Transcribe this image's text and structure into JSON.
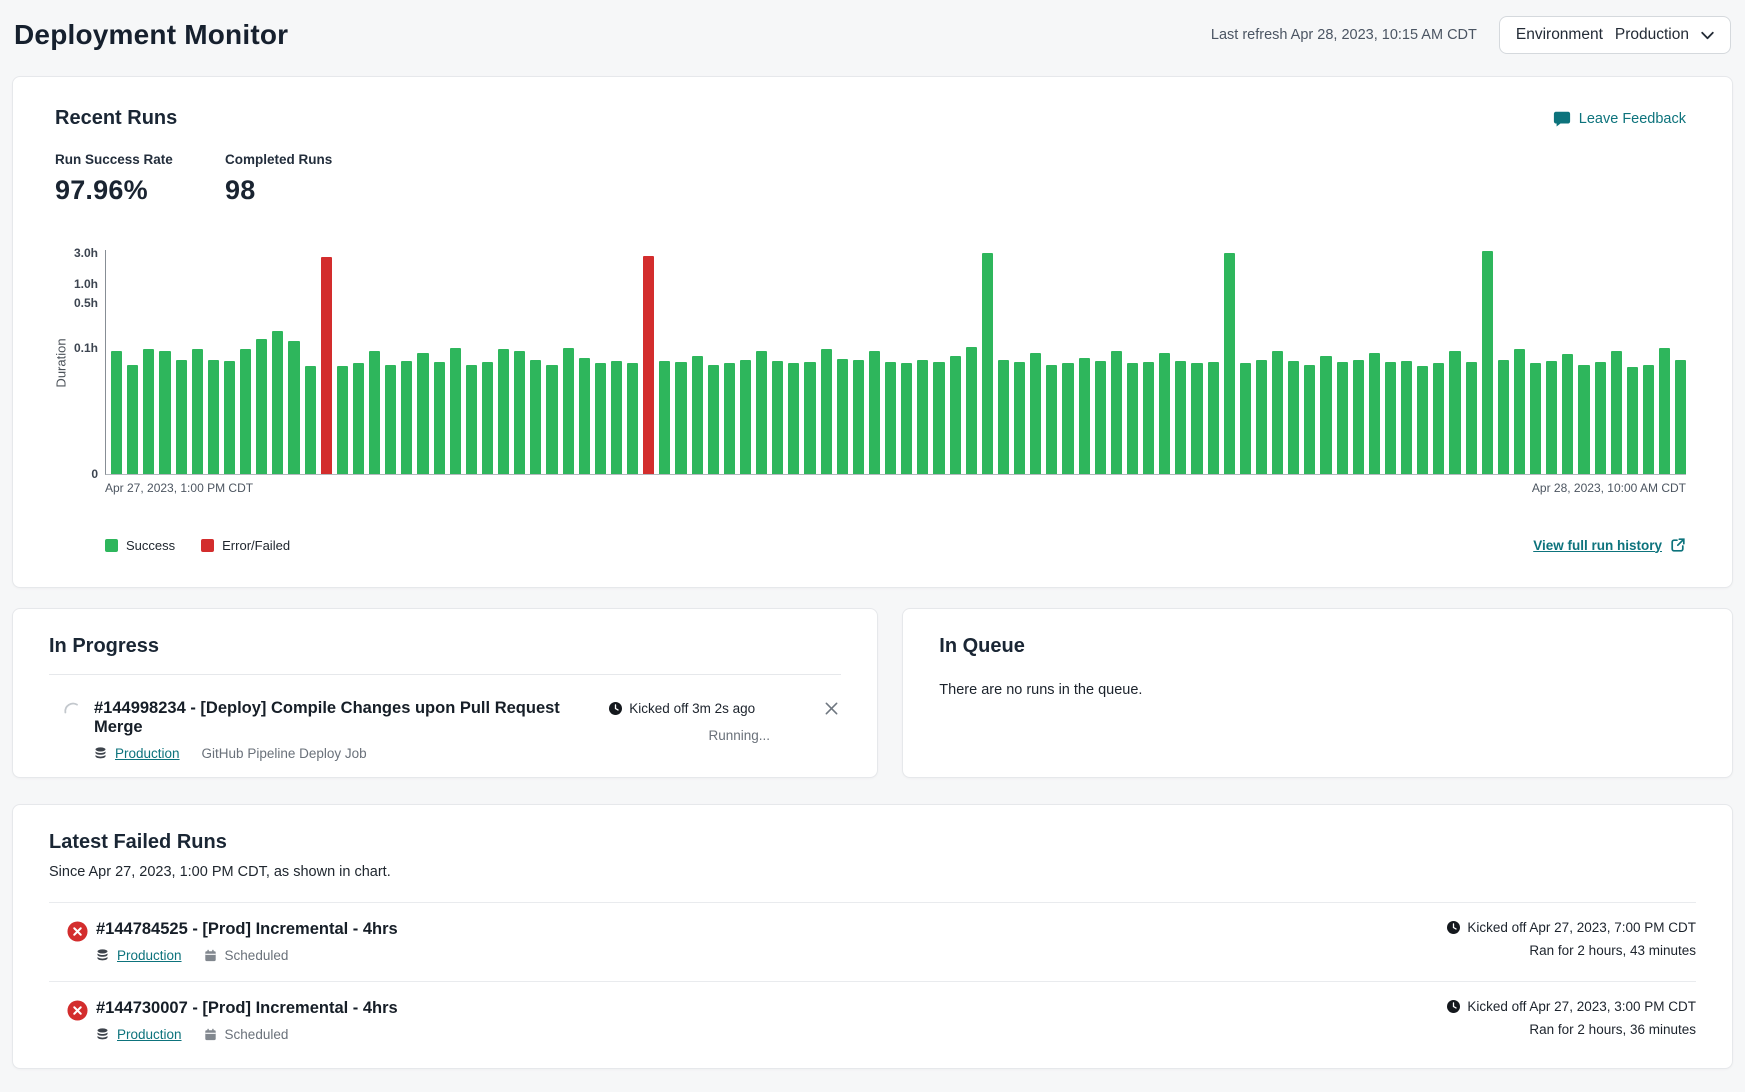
{
  "header": {
    "title": "Deployment Monitor",
    "last_refresh": "Last refresh Apr 28, 2023, 10:15 AM CDT",
    "environment_label": "Environment",
    "environment_value": "Production"
  },
  "recent_runs": {
    "title": "Recent Runs",
    "leave_feedback_label": "Leave Feedback",
    "stats": [
      {
        "label": "Run Success Rate",
        "value": "97.96%"
      },
      {
        "label": "Completed Runs",
        "value": "98"
      }
    ],
    "view_history_label": "View full run history"
  },
  "chart_data": {
    "type": "bar",
    "ylabel": "Duration",
    "scale": "log",
    "unit": "hours",
    "y_ticks": [
      {
        "label": "3.0h",
        "value": 3
      },
      {
        "label": "1.0h",
        "value": 1
      },
      {
        "label": "0.5h",
        "value": 0.5
      },
      {
        "label": "0.1h",
        "value": 0.1
      },
      {
        "label": "0",
        "value": 0
      }
    ],
    "x_start_label": "Apr 27, 2023, 1:00 PM CDT",
    "x_end_label": "Apr 28, 2023, 10:00 AM CDT",
    "legend": [
      {
        "label": "Success",
        "color": "#2eb65c"
      },
      {
        "label": "Error/Failed",
        "color": "#d32d2d"
      }
    ],
    "durations_hours": [
      0.09,
      0.055,
      0.095,
      0.09,
      0.065,
      0.095,
      0.065,
      0.062,
      0.095,
      0.14,
      0.185,
      0.13,
      0.052,
      2.6,
      0.052,
      0.058,
      0.09,
      0.055,
      0.062,
      0.085,
      0.06,
      0.1,
      0.055,
      0.06,
      0.095,
      0.09,
      0.065,
      0.055,
      0.1,
      0.07,
      0.058,
      0.062,
      0.058,
      2.72,
      0.062,
      0.06,
      0.075,
      0.055,
      0.058,
      0.065,
      0.09,
      0.062,
      0.058,
      0.06,
      0.095,
      0.068,
      0.065,
      0.09,
      0.06,
      0.058,
      0.065,
      0.06,
      0.075,
      0.105,
      3.0,
      0.065,
      0.06,
      0.085,
      0.055,
      0.058,
      0.07,
      0.062,
      0.09,
      0.058,
      0.06,
      0.085,
      0.062,
      0.058,
      0.06,
      3.0,
      0.058,
      0.065,
      0.09,
      0.062,
      0.055,
      0.075,
      0.06,
      0.065,
      0.085,
      0.06,
      0.062,
      0.052,
      0.058,
      0.09,
      0.06,
      3.3,
      0.065,
      0.095,
      0.058,
      0.062,
      0.08,
      0.055,
      0.06,
      0.09,
      0.05,
      0.055,
      0.1,
      0.065
    ],
    "error_indices": [
      13,
      33
    ]
  },
  "in_progress": {
    "title": "In Progress",
    "run": {
      "title": "#144998234 - [Deploy] Compile Changes upon Pull Request Merge",
      "environment": "Production",
      "job": "GitHub Pipeline Deploy Job",
      "kicked_off": "Kicked off 3m 2s ago",
      "status": "Running..."
    }
  },
  "in_queue": {
    "title": "In Queue",
    "empty_message": "There are no runs in the queue."
  },
  "failed_runs": {
    "title": "Latest Failed Runs",
    "subtitle": "Since Apr 27, 2023, 1:00 PM CDT, as shown in chart.",
    "runs": [
      {
        "title": "#144784525 - [Prod] Incremental - 4hrs",
        "environment": "Production",
        "trigger": "Scheduled",
        "kicked_off": "Kicked off Apr 27, 2023, 7:00 PM CDT",
        "ran_for": "Ran for 2 hours, 43 minutes"
      },
      {
        "title": "#144730007 - [Prod] Incremental - 4hrs",
        "environment": "Production",
        "trigger": "Scheduled",
        "kicked_off": "Kicked off Apr 27, 2023, 3:00 PM CDT",
        "ran_for": "Ran for 2 hours, 36 minutes"
      }
    ]
  },
  "colors": {
    "teal": "#0d737c",
    "green": "#2eb65c",
    "red": "#d32d2d"
  }
}
